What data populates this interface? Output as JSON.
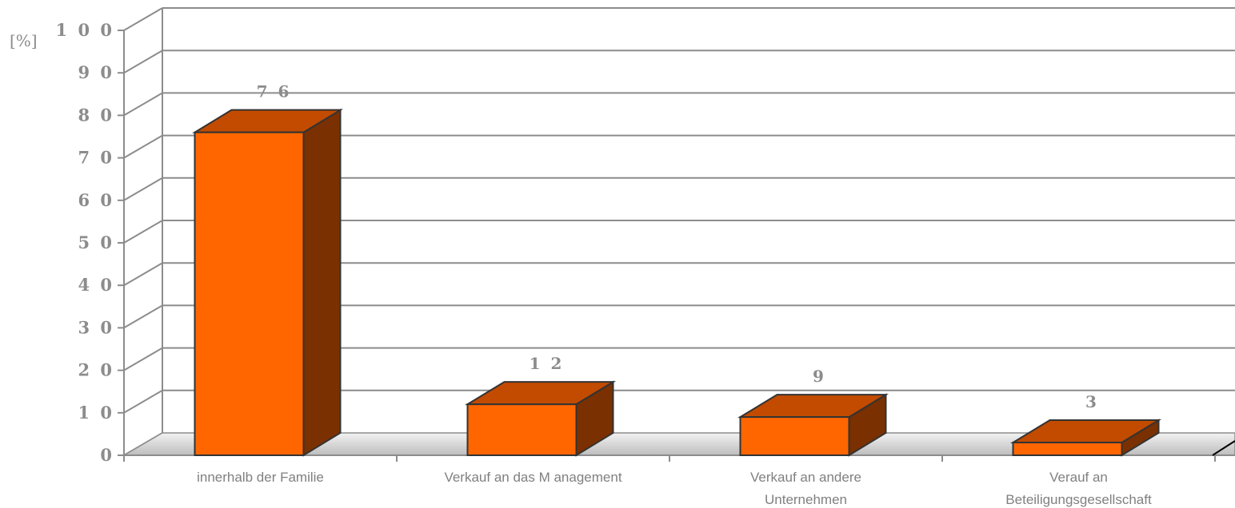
{
  "chart_data": {
    "type": "bar",
    "unit_label": "[%]",
    "categories": [
      [
        "innerhalb der Familie"
      ],
      [
        "Verkauf an das M anagement"
      ],
      [
        "Verkauf an andere",
        "Unternehmen"
      ],
      [
        "Verauf an",
        "Beteiligungsgesellschaft"
      ]
    ],
    "values": [
      76,
      12,
      9,
      3
    ],
    "data_labels": [
      "7 6",
      "1 2",
      "9",
      "3"
    ],
    "yticks": [
      "0",
      "1 0",
      "2 0",
      "3 0",
      "4 0",
      "5 0",
      "6 0",
      "7 0",
      "8 0",
      "9 0",
      "1 0 0"
    ],
    "ylim": [
      0,
      100
    ],
    "grid": true,
    "legend": "none",
    "colors": {
      "bar_front": "#ff6600",
      "bar_top": "#c24b00",
      "bar_side": "#7a3000",
      "grid": "#8c8c8c",
      "floor_top": "#f2f2f2",
      "floor_bottom": "#bdbdbd"
    }
  }
}
